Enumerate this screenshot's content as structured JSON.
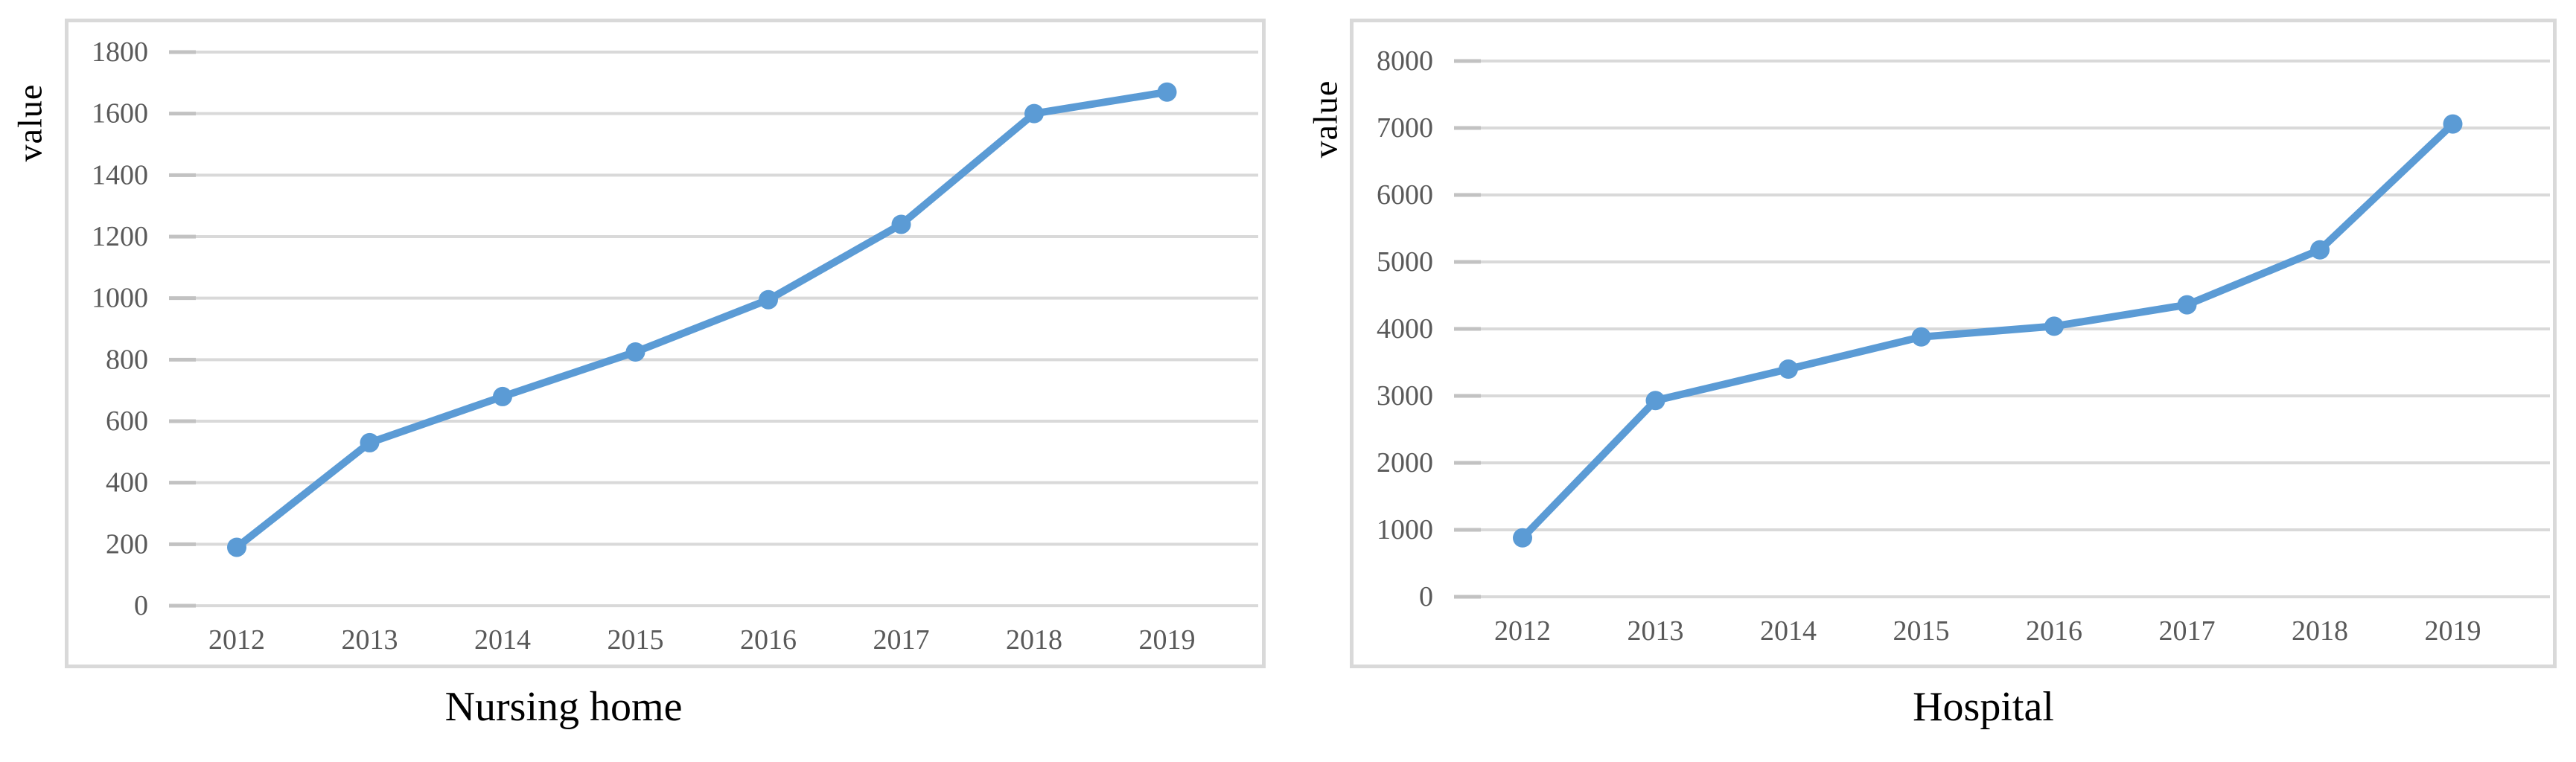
{
  "figure": {
    "background": "#ffffff",
    "accent_color": "#5b9bd5",
    "gridline_color": "#d9d9d9",
    "tick_stub_color": "#c2c2c2",
    "frame_border_color": "#d9d9d9",
    "tick_label_color": "#595959",
    "text_color": "#000000"
  },
  "chart_data": [
    {
      "type": "line",
      "title": "Nursing home",
      "ylabel": "value",
      "categories": [
        "2012",
        "2013",
        "2014",
        "2015",
        "2016",
        "2017",
        "2018",
        "2019"
      ],
      "values": [
        190,
        530,
        680,
        825,
        995,
        1240,
        1600,
        1670
      ],
      "yticks": [
        "0",
        "200",
        "400",
        "600",
        "800",
        "1000",
        "1200",
        "1400",
        "1600",
        "1800"
      ],
      "ylim": [
        0,
        1800
      ],
      "ytick_step": 200,
      "grid": true,
      "legend": "none",
      "marker": "circle"
    },
    {
      "type": "line",
      "title": "Hospital",
      "ylabel": "value",
      "categories": [
        "2012",
        "2013",
        "2014",
        "2015",
        "2016",
        "2017",
        "2018",
        "2019"
      ],
      "values": [
        880,
        2930,
        3400,
        3880,
        4040,
        4360,
        5180,
        7060
      ],
      "yticks": [
        "0",
        "1000",
        "2000",
        "3000",
        "4000",
        "5000",
        "6000",
        "7000",
        "8000"
      ],
      "ylim": [
        0,
        8000
      ],
      "ytick_step": 1000,
      "grid": true,
      "legend": "none",
      "marker": "circle"
    }
  ]
}
